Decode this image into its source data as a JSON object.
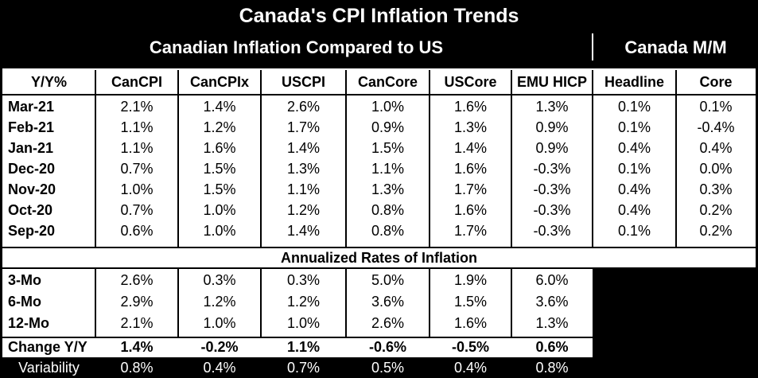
{
  "title": "Canada's CPI Inflation Trends",
  "subheader_left": "Canadian Inflation Compared to US",
  "subheader_right": "Canada M/M",
  "columns": [
    "Y/Y%",
    "CanCPI",
    "CanCPIx",
    "USCPI",
    "CanCore",
    "USCore",
    "EMU HICP",
    "Headline",
    "Core"
  ],
  "monthly_rows": [
    {
      "label": "Mar-21",
      "values": [
        "2.1%",
        "1.4%",
        "2.6%",
        "1.0%",
        "1.6%",
        "1.3%",
        "0.1%",
        "0.1%"
      ]
    },
    {
      "label": "Feb-21",
      "values": [
        "1.1%",
        "1.2%",
        "1.7%",
        "0.9%",
        "1.3%",
        "0.9%",
        "0.1%",
        "-0.4%"
      ]
    },
    {
      "label": "Jan-21",
      "values": [
        "1.1%",
        "1.6%",
        "1.4%",
        "1.5%",
        "1.4%",
        "0.9%",
        "0.4%",
        "0.4%"
      ]
    },
    {
      "label": "Dec-20",
      "values": [
        "0.7%",
        "1.5%",
        "1.3%",
        "1.1%",
        "1.6%",
        "-0.3%",
        "0.1%",
        "0.0%"
      ]
    },
    {
      "label": "Nov-20",
      "values": [
        "1.0%",
        "1.5%",
        "1.1%",
        "1.3%",
        "1.7%",
        "-0.3%",
        "0.4%",
        "0.3%"
      ]
    },
    {
      "label": "Oct-20",
      "values": [
        "0.7%",
        "1.0%",
        "1.2%",
        "0.8%",
        "1.6%",
        "-0.3%",
        "0.4%",
        "0.2%"
      ]
    },
    {
      "label": "Sep-20",
      "values": [
        "0.6%",
        "1.0%",
        "1.4%",
        "0.8%",
        "1.7%",
        "-0.3%",
        "0.1%",
        "0.2%"
      ]
    }
  ],
  "annualized_header": "Annualized Rates of Inflation",
  "annualized_rows": [
    {
      "label": "3-Mo",
      "values": [
        "2.6%",
        "0.3%",
        "0.3%",
        "5.0%",
        "1.9%",
        "6.0%"
      ]
    },
    {
      "label": "6-Mo",
      "values": [
        "2.9%",
        "1.2%",
        "1.2%",
        "3.6%",
        "1.5%",
        "3.6%"
      ]
    },
    {
      "label": "12-Mo",
      "values": [
        "2.1%",
        "1.0%",
        "1.0%",
        "2.6%",
        "1.6%",
        "1.3%"
      ]
    }
  ],
  "change_row": {
    "label": "Change Y/Y",
    "values": [
      "1.4%",
      "-0.2%",
      "1.1%",
      "-0.6%",
      "-0.5%",
      "0.6%"
    ]
  },
  "variability_row": {
    "label": "Variability",
    "values": [
      "0.8%",
      "0.4%",
      "0.7%",
      "0.5%",
      "0.4%",
      "0.8%"
    ]
  }
}
